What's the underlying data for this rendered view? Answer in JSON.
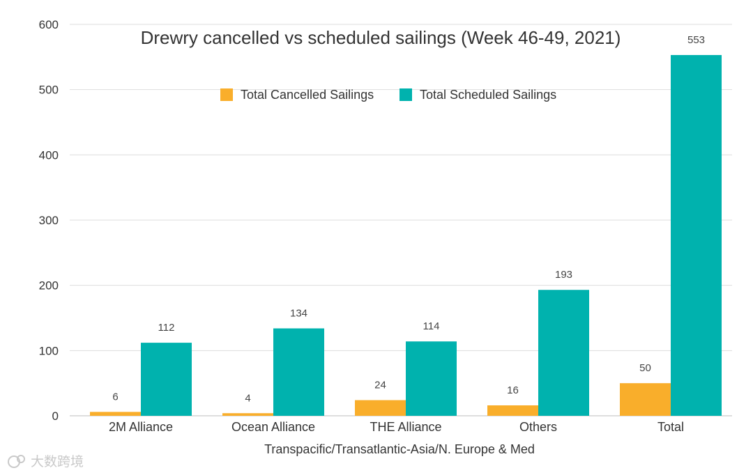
{
  "chart_data": {
    "type": "bar",
    "title": "Drewry cancelled vs scheduled sailings (Week 46-49, 2021)",
    "xlabel": "Transpacific/Transatlantic-Asia/N. Europe & Med",
    "ylabel": "",
    "ylim": [
      0,
      600
    ],
    "yticks": [
      0,
      100,
      200,
      300,
      400,
      500,
      600
    ],
    "categories": [
      "2M Alliance",
      "Ocean Alliance",
      "THE Alliance",
      "Others",
      "Total"
    ],
    "series": [
      {
        "name": "Total Cancelled Sailings",
        "color": "#F9AE2B",
        "values": [
          6,
          4,
          24,
          16,
          50
        ]
      },
      {
        "name": "Total Scheduled Sailings",
        "color": "#00B2AE",
        "values": [
          112,
          134,
          114,
          193,
          553
        ]
      }
    ],
    "legend_position": "top-center",
    "grid": true
  },
  "watermark": {
    "text": "大数跨境"
  }
}
